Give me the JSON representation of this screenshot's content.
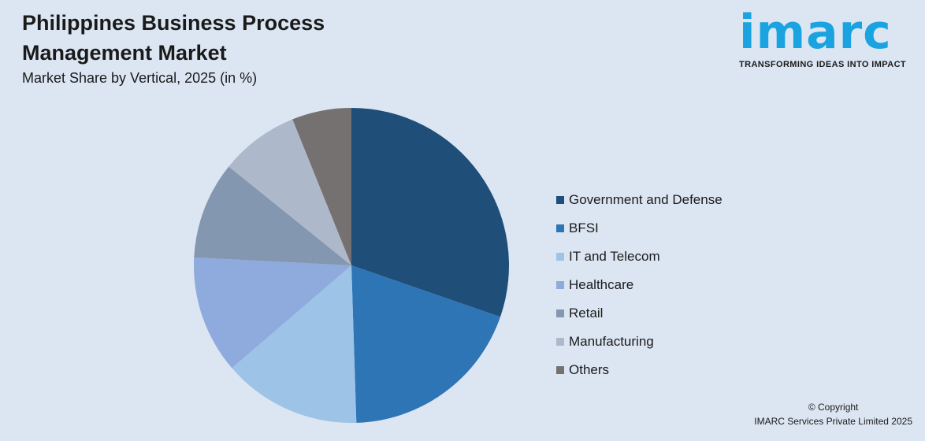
{
  "header": {
    "title": "Philippines Business Process Management Market",
    "subtitle": "Market Share by Vertical, 2025 (in %)"
  },
  "logo": {
    "word": "imarc",
    "tagline": "TRANSFORMING IDEAS INTO IMPACT",
    "color": "#1aa3e0"
  },
  "chart_data": {
    "type": "pie",
    "title": "Philippines Business Process Management Market",
    "subtitle": "Market Share by Vertical, 2025 (in %)",
    "categories": [
      "Government and Defense",
      "BFSI",
      "IT and Telecom",
      "Healthcare",
      "Retail",
      "Manufacturing",
      "Others"
    ],
    "values": [
      30.3,
      19.2,
      14.2,
      12.1,
      10.0,
      8.1,
      6.1
    ],
    "colors": [
      "#1f4e79",
      "#2e75b6",
      "#9dc3e6",
      "#8faadc",
      "#8497b0",
      "#adb9ca",
      "#767171"
    ],
    "start": "top",
    "direction": "clockwise",
    "legend": "right"
  },
  "footer": {
    "copyright": "© Copyright",
    "company": "IMARC Services Private Limited 2025"
  }
}
